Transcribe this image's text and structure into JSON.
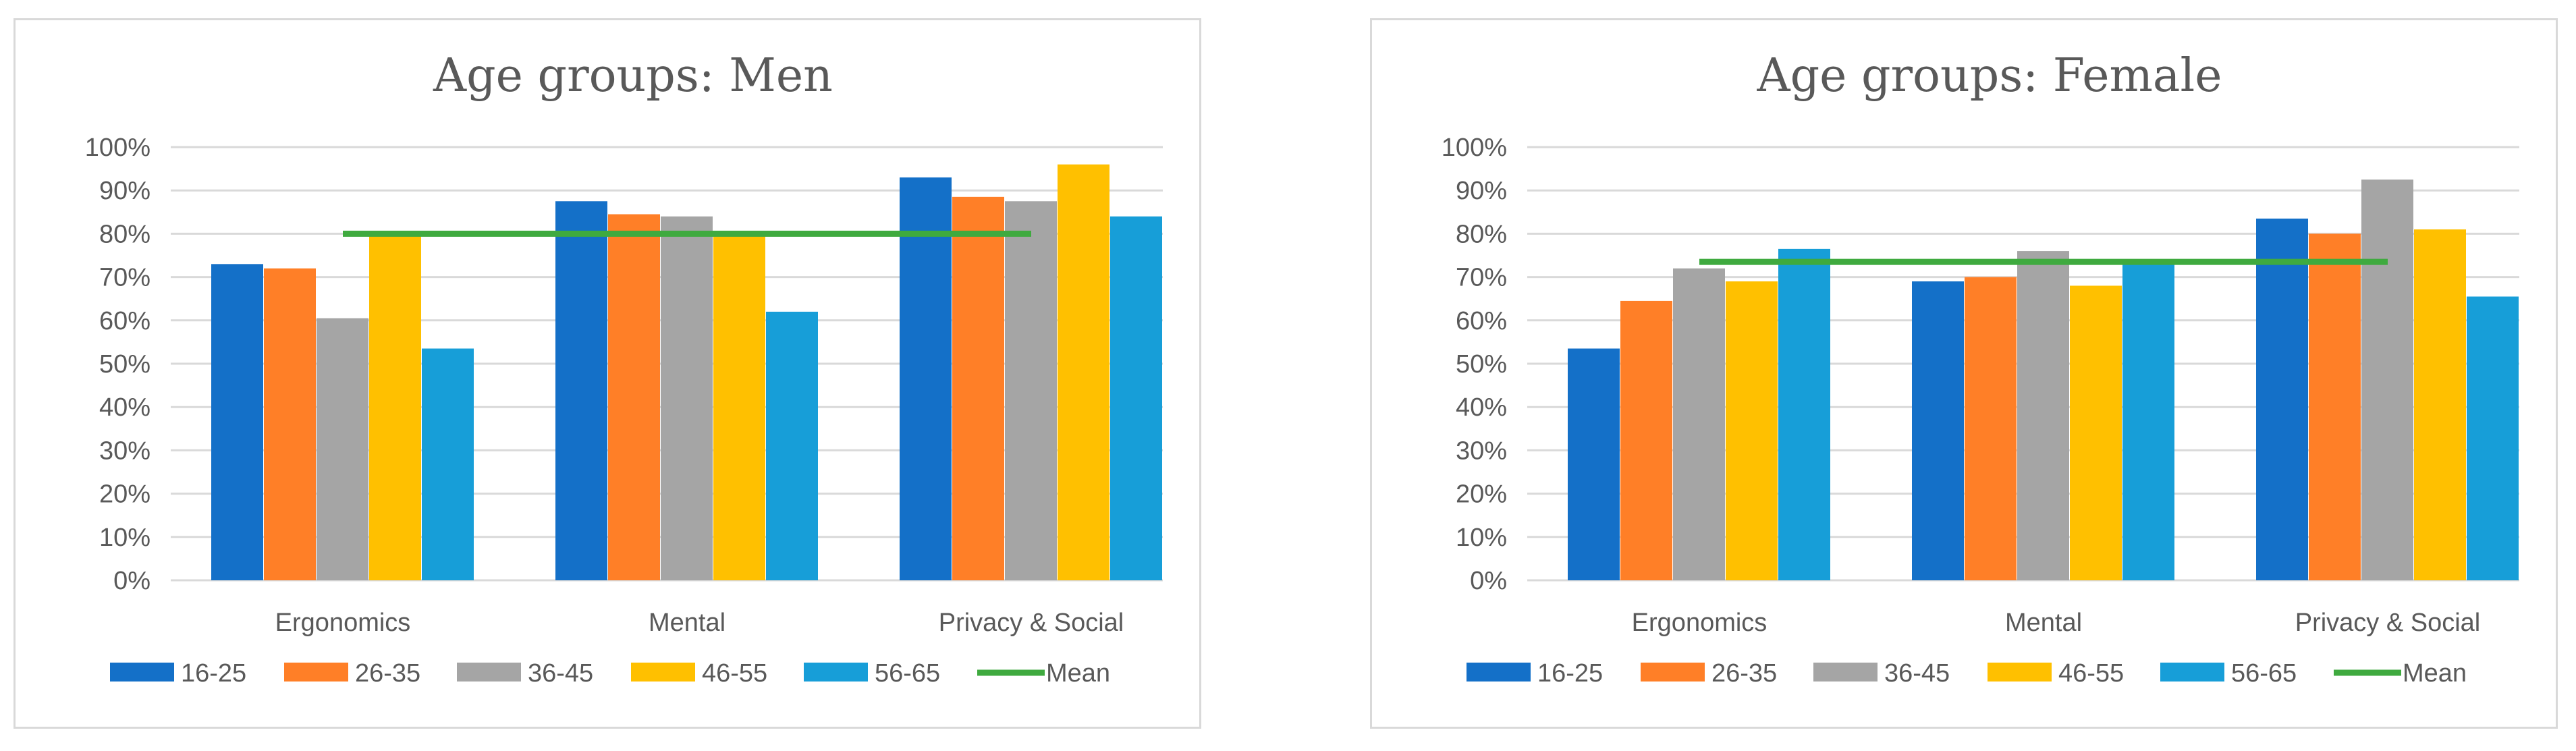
{
  "chart_data": [
    {
      "type": "bar",
      "title": "Age groups: Men",
      "categories": [
        "Ergonomics",
        "Mental",
        "Privacy & Social"
      ],
      "series": [
        {
          "name": "16-25",
          "color": "#1470C8",
          "values": [
            73,
            87.5,
            93
          ]
        },
        {
          "name": "26-35",
          "color": "#FF7F27",
          "values": [
            72,
            84.5,
            88.5
          ]
        },
        {
          "name": "36-45",
          "color": "#A5A5A5",
          "values": [
            60.5,
            84,
            87.5
          ]
        },
        {
          "name": "46-55",
          "color": "#FFC000",
          "values": [
            80,
            80,
            96
          ]
        },
        {
          "name": "56-65",
          "color": "#179ED8",
          "values": [
            53.5,
            62,
            84
          ]
        }
      ],
      "mean": {
        "name": "Mean",
        "color": "#3FAA3F",
        "value": 80
      },
      "yticks": [
        "0%",
        "10%",
        "20%",
        "30%",
        "40%",
        "50%",
        "60%",
        "70%",
        "80%",
        "90%",
        "100%"
      ],
      "ylim": [
        0,
        100
      ],
      "grid": true,
      "legend": "bottom"
    },
    {
      "type": "bar",
      "title": "Age groups: Female",
      "categories": [
        "Ergonomics",
        "Mental",
        "Privacy & Social"
      ],
      "series": [
        {
          "name": "16-25",
          "color": "#1470C8",
          "values": [
            53.5,
            69,
            83.5
          ]
        },
        {
          "name": "26-35",
          "color": "#FF7F27",
          "values": [
            64.5,
            70,
            80
          ]
        },
        {
          "name": "36-45",
          "color": "#A5A5A5",
          "values": [
            72,
            76,
            92.5
          ]
        },
        {
          "name": "46-55",
          "color": "#FFC000",
          "values": [
            69,
            68,
            81
          ]
        },
        {
          "name": "56-65",
          "color": "#179ED8",
          "values": [
            76.5,
            73.5,
            65.5
          ]
        }
      ],
      "mean": {
        "name": "Mean",
        "color": "#3FAA3F",
        "value": 73.5
      },
      "yticks": [
        "0%",
        "10%",
        "20%",
        "30%",
        "40%",
        "50%",
        "60%",
        "70%",
        "80%",
        "90%",
        "100%"
      ],
      "ylim": [
        0,
        100
      ],
      "grid": true,
      "legend": "bottom"
    }
  ]
}
